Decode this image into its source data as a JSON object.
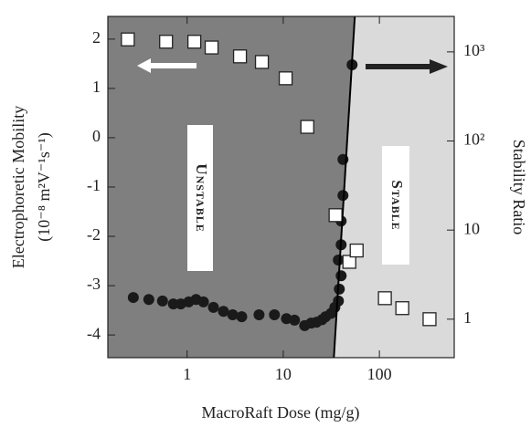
{
  "chart_data": {
    "type": "scatter",
    "x_label": "MacroRaft Dose (mg/g)",
    "y_label": "Electrophoretic Mobility",
    "y_label_units": "(10⁻⁸ m²V⁻¹s⁻¹)",
    "y2_label": "Stability Ratio",
    "annotations": [
      "Unstable",
      "Stable"
    ],
    "xlog": true,
    "y2log": true,
    "xlim": [
      0.15,
      600
    ],
    "xticks": [
      1,
      10,
      100
    ],
    "ylim": [
      -4.46,
      2.46
    ],
    "yticks": [
      2,
      1,
      0,
      -1,
      -2,
      -3,
      -4
    ],
    "y2lim": [
      0.37,
      2500
    ],
    "y2ticks": [
      1,
      10,
      {
        "value": 100,
        "label": "10²"
      },
      {
        "value": 1000,
        "label": "10³"
      }
    ],
    "unstable_color": "#7f7f7f",
    "stable_color": "#dadada",
    "series": [
      {
        "marker": "circle",
        "axis": "y",
        "color": "#1a1a1a",
        "x": [
          0.276,
          0.4,
          0.555,
          0.72,
          0.86,
          1.04,
          1.24,
          1.48,
          1.88,
          2.39,
          2.98,
          3.7,
          5.6,
          8.1,
          10.8,
          13.1,
          16.7,
          19.5,
          22.2,
          25.3,
          27.6,
          31.5,
          34.4,
          37.5,
          38.3,
          40,
          37.4,
          40,
          40,
          41.8,
          41.8,
          52
        ],
        "values": [
          -3.24,
          -3.28,
          -3.31,
          -3.37,
          -3.37,
          -3.33,
          -3.28,
          -3.33,
          -3.44,
          -3.52,
          -3.59,
          -3.63,
          -3.59,
          -3.59,
          -3.67,
          -3.7,
          -3.81,
          -3.76,
          -3.74,
          -3.69,
          -3.63,
          -3.56,
          -3.44,
          -3.31,
          -3.07,
          -2.8,
          -2.48,
          -2.17,
          -1.69,
          -1.17,
          -0.44,
          1.48
        ]
      },
      {
        "marker": "square",
        "axis": "y2",
        "color": "#ffffff",
        "x": [
          0.242,
          0.605,
          1.19,
          1.8,
          3.55,
          6.0,
          10.6,
          17.8,
          35,
          48.7,
          58,
          114,
          173,
          332
        ],
        "values": [
          1380,
          1300,
          1300,
          1120,
          890,
          770,
          505,
          144,
          14.7,
          4.4,
          5.9,
          1.72,
          1.33,
          1.0
        ]
      },
      {
        "marker": "line",
        "axis": "y",
        "color": "#000000",
        "x": [
          33.6,
          55.5
        ],
        "values": [
          -4.46,
          2.46
        ]
      }
    ]
  }
}
